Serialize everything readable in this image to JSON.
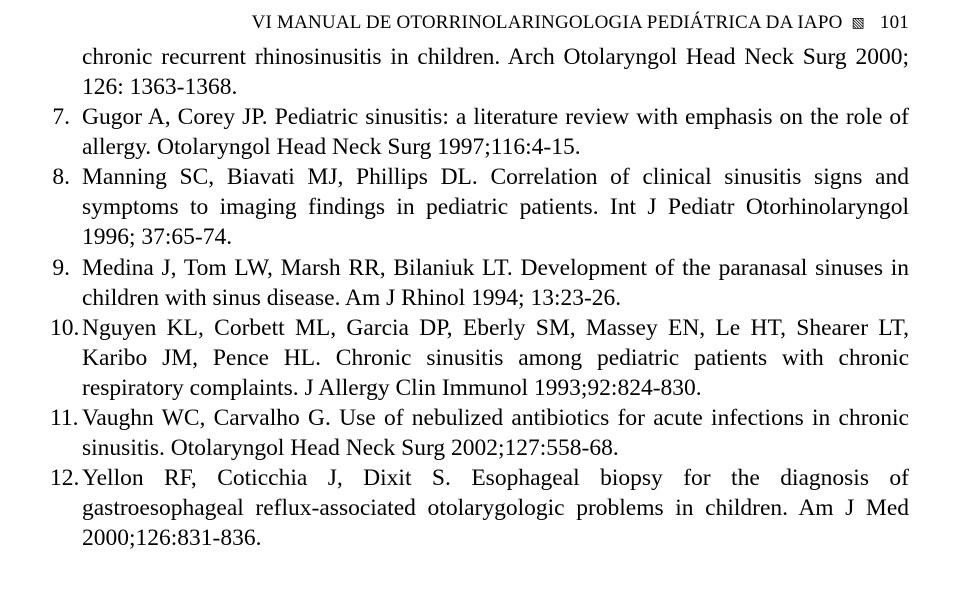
{
  "header": {
    "title": "VI MANUAL DE OTORRINOLARINGOLOGIA PEDIÁTRICA DA IAPO",
    "decoration": "▧",
    "page_number": "101"
  },
  "references": {
    "continuation_6": "chronic recurrent rhinosinusitis in children. Arch Otolaryngol Head Neck Surg 2000; 126: 1363-1368.",
    "items": [
      {
        "num": "7.",
        "text": "Gugor A, Corey JP. Pediatric sinusitis: a literature review with emphasis on the role of allergy. Otolaryngol Head Neck Surg 1997;116:4-15."
      },
      {
        "num": "8.",
        "text": "Manning SC, Biavati MJ, Phillips DL. Correlation of clinical sinusitis signs and symptoms to imaging findings in pediatric patients. Int J Pediatr Otorhinolaryngol 1996; 37:65-74."
      },
      {
        "num": "9.",
        "text": "Medina J, Tom LW, Marsh RR, Bilaniuk LT. Development of the paranasal sinuses in children with sinus disease. Am J Rhinol 1994; 13:23-26."
      },
      {
        "num": "10.",
        "text": "Nguyen KL, Corbett ML, Garcia DP, Eberly SM, Massey EN, Le HT, Shearer LT, Karibo JM, Pence HL. Chronic sinusitis among pediatric patients with chronic respiratory complaints. J Allergy Clin Immunol 1993;92:824-830."
      },
      {
        "num": "11.",
        "text": "Vaughn WC, Carvalho G. Use of nebulized antibiotics for acute infections in chronic sinusitis. Otolaryngol Head Neck Surg 2002;127:558-68."
      },
      {
        "num": "12.",
        "text": "Yellon RF, Coticchia J, Dixit S. Esophageal biopsy for the diagnosis of gastroesophageal reflux-associated otolarygologic problems in children. Am J Med 2000;126:831-836."
      }
    ]
  },
  "styling": {
    "background_color": "#ffffff",
    "text_color": "#000000",
    "font_family": "Times New Roman",
    "header_fontsize": 19,
    "body_fontsize": 23.5,
    "line_height": 1.28
  }
}
